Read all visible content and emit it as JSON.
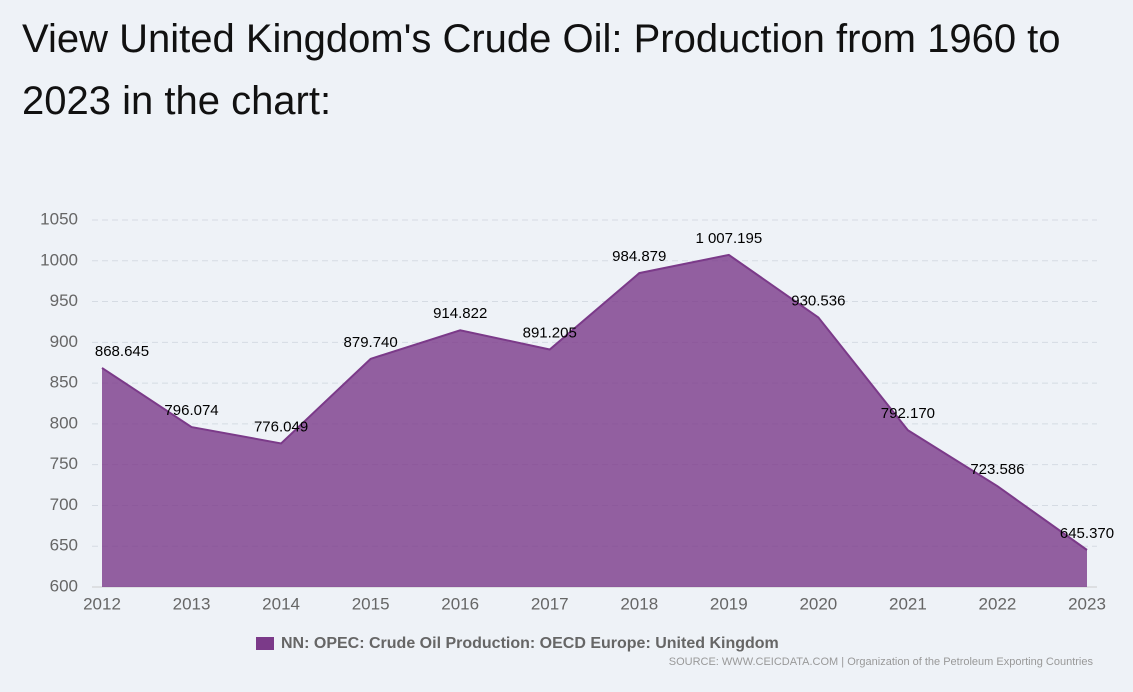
{
  "chart_data": {
    "type": "area",
    "title": "View United Kingdom's Crude Oil: Production from 1960 to 2023 in the chart:",
    "categories": [
      "2012",
      "2013",
      "2014",
      "2015",
      "2016",
      "2017",
      "2018",
      "2019",
      "2020",
      "2021",
      "2022",
      "2023"
    ],
    "series": [
      {
        "name": "NN: OPEC: Crude Oil Production: OECD Europe: United Kingdom",
        "color": "#7b3a89",
        "values": [
          868.645,
          796.074,
          776.049,
          879.74,
          914.822,
          891.205,
          984.879,
          1007.195,
          930.536,
          792.17,
          723.586,
          645.37
        ],
        "value_labels": [
          "868.645",
          "796.074",
          "776.049",
          "879.740",
          "914.822",
          "891.205",
          "984.879",
          "1 007.195",
          "930.536",
          "792.170",
          "723.586",
          "645.370"
        ]
      }
    ],
    "ylim": [
      600,
      1050
    ],
    "yticks": [
      600,
      650,
      700,
      750,
      800,
      850,
      900,
      950,
      1000,
      1050
    ],
    "grid": true,
    "source": "SOURCE: WWW.CEICDATA.COM | Organization of the Petroleum Exporting Countries"
  }
}
